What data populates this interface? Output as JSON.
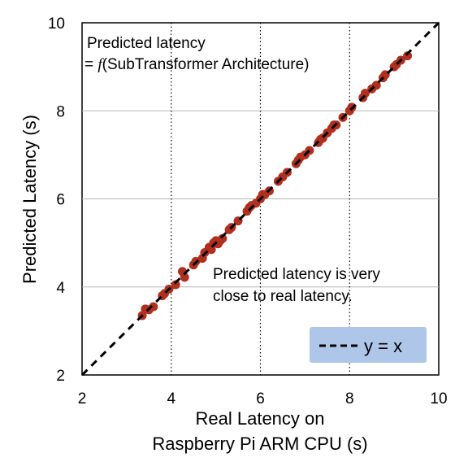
{
  "chart_data": {
    "type": "scatter",
    "xlabel_line1": "Real Latency on",
    "xlabel_line2": "Raspberry Pi ARM CPU (s)",
    "ylabel": "Predicted Latency (s)",
    "xlim": [
      2,
      10
    ],
    "ylim": [
      2,
      10
    ],
    "x_ticks": [
      "2",
      "4",
      "6",
      "8",
      "10"
    ],
    "y_ticks": [
      "2",
      "4",
      "6",
      "8",
      "10"
    ],
    "x_grid": [
      4,
      6,
      8
    ],
    "y_grid": [
      4,
      6,
      8
    ],
    "x_grid_style": "dotted",
    "y_grid_style": "solid",
    "annotation_top_line1": "Predicted latency",
    "annotation_top_line2_prefix": "= ",
    "annotation_top_func": "f",
    "annotation_top_line2_suffix": "(SubTransformer Architecture)",
    "annotation_mid_line1": "Predicted latency is very",
    "annotation_mid_line2": "close to real latency.",
    "legend_label": "y = x",
    "legend_placement": "bottom-right",
    "legend_bg": "#aec7e8",
    "point_color": "#b03020",
    "points": [
      [
        3.35,
        3.35
      ],
      [
        3.42,
        3.5
      ],
      [
        3.5,
        3.48
      ],
      [
        3.6,
        3.55
      ],
      [
        3.8,
        3.8
      ],
      [
        3.85,
        3.85
      ],
      [
        3.95,
        3.95
      ],
      [
        4.1,
        4.05
      ],
      [
        4.25,
        4.35
      ],
      [
        4.3,
        4.22
      ],
      [
        4.5,
        4.5
      ],
      [
        4.55,
        4.58
      ],
      [
        4.7,
        4.65
      ],
      [
        4.75,
        4.78
      ],
      [
        4.85,
        4.9
      ],
      [
        4.9,
        4.85
      ],
      [
        4.95,
        5.0
      ],
      [
        5.0,
        5.05
      ],
      [
        5.05,
        4.98
      ],
      [
        5.1,
        5.05
      ],
      [
        5.15,
        5.1
      ],
      [
        5.3,
        5.3
      ],
      [
        5.35,
        5.35
      ],
      [
        5.5,
        5.5
      ],
      [
        5.7,
        5.72
      ],
      [
        5.75,
        5.8
      ],
      [
        5.8,
        5.85
      ],
      [
        5.9,
        5.9
      ],
      [
        6.0,
        6.0
      ],
      [
        6.05,
        6.1
      ],
      [
        6.1,
        6.1
      ],
      [
        6.2,
        6.18
      ],
      [
        6.4,
        6.4
      ],
      [
        6.5,
        6.5
      ],
      [
        6.6,
        6.6
      ],
      [
        6.8,
        6.8
      ],
      [
        6.85,
        6.88
      ],
      [
        6.9,
        6.95
      ],
      [
        7.0,
        7.0
      ],
      [
        7.1,
        7.1
      ],
      [
        7.3,
        7.28
      ],
      [
        7.35,
        7.35
      ],
      [
        7.4,
        7.38
      ],
      [
        7.5,
        7.5
      ],
      [
        7.6,
        7.6
      ],
      [
        7.65,
        7.68
      ],
      [
        7.7,
        7.68
      ],
      [
        7.85,
        7.85
      ],
      [
        8.0,
        8.0
      ],
      [
        8.05,
        8.08
      ],
      [
        8.3,
        8.3
      ],
      [
        8.35,
        8.4
      ],
      [
        8.5,
        8.5
      ],
      [
        8.6,
        8.58
      ],
      [
        8.75,
        8.75
      ],
      [
        8.8,
        8.82
      ],
      [
        9.0,
        9.0
      ],
      [
        9.05,
        9.05
      ],
      [
        9.15,
        9.15
      ],
      [
        9.3,
        9.25
      ]
    ]
  }
}
